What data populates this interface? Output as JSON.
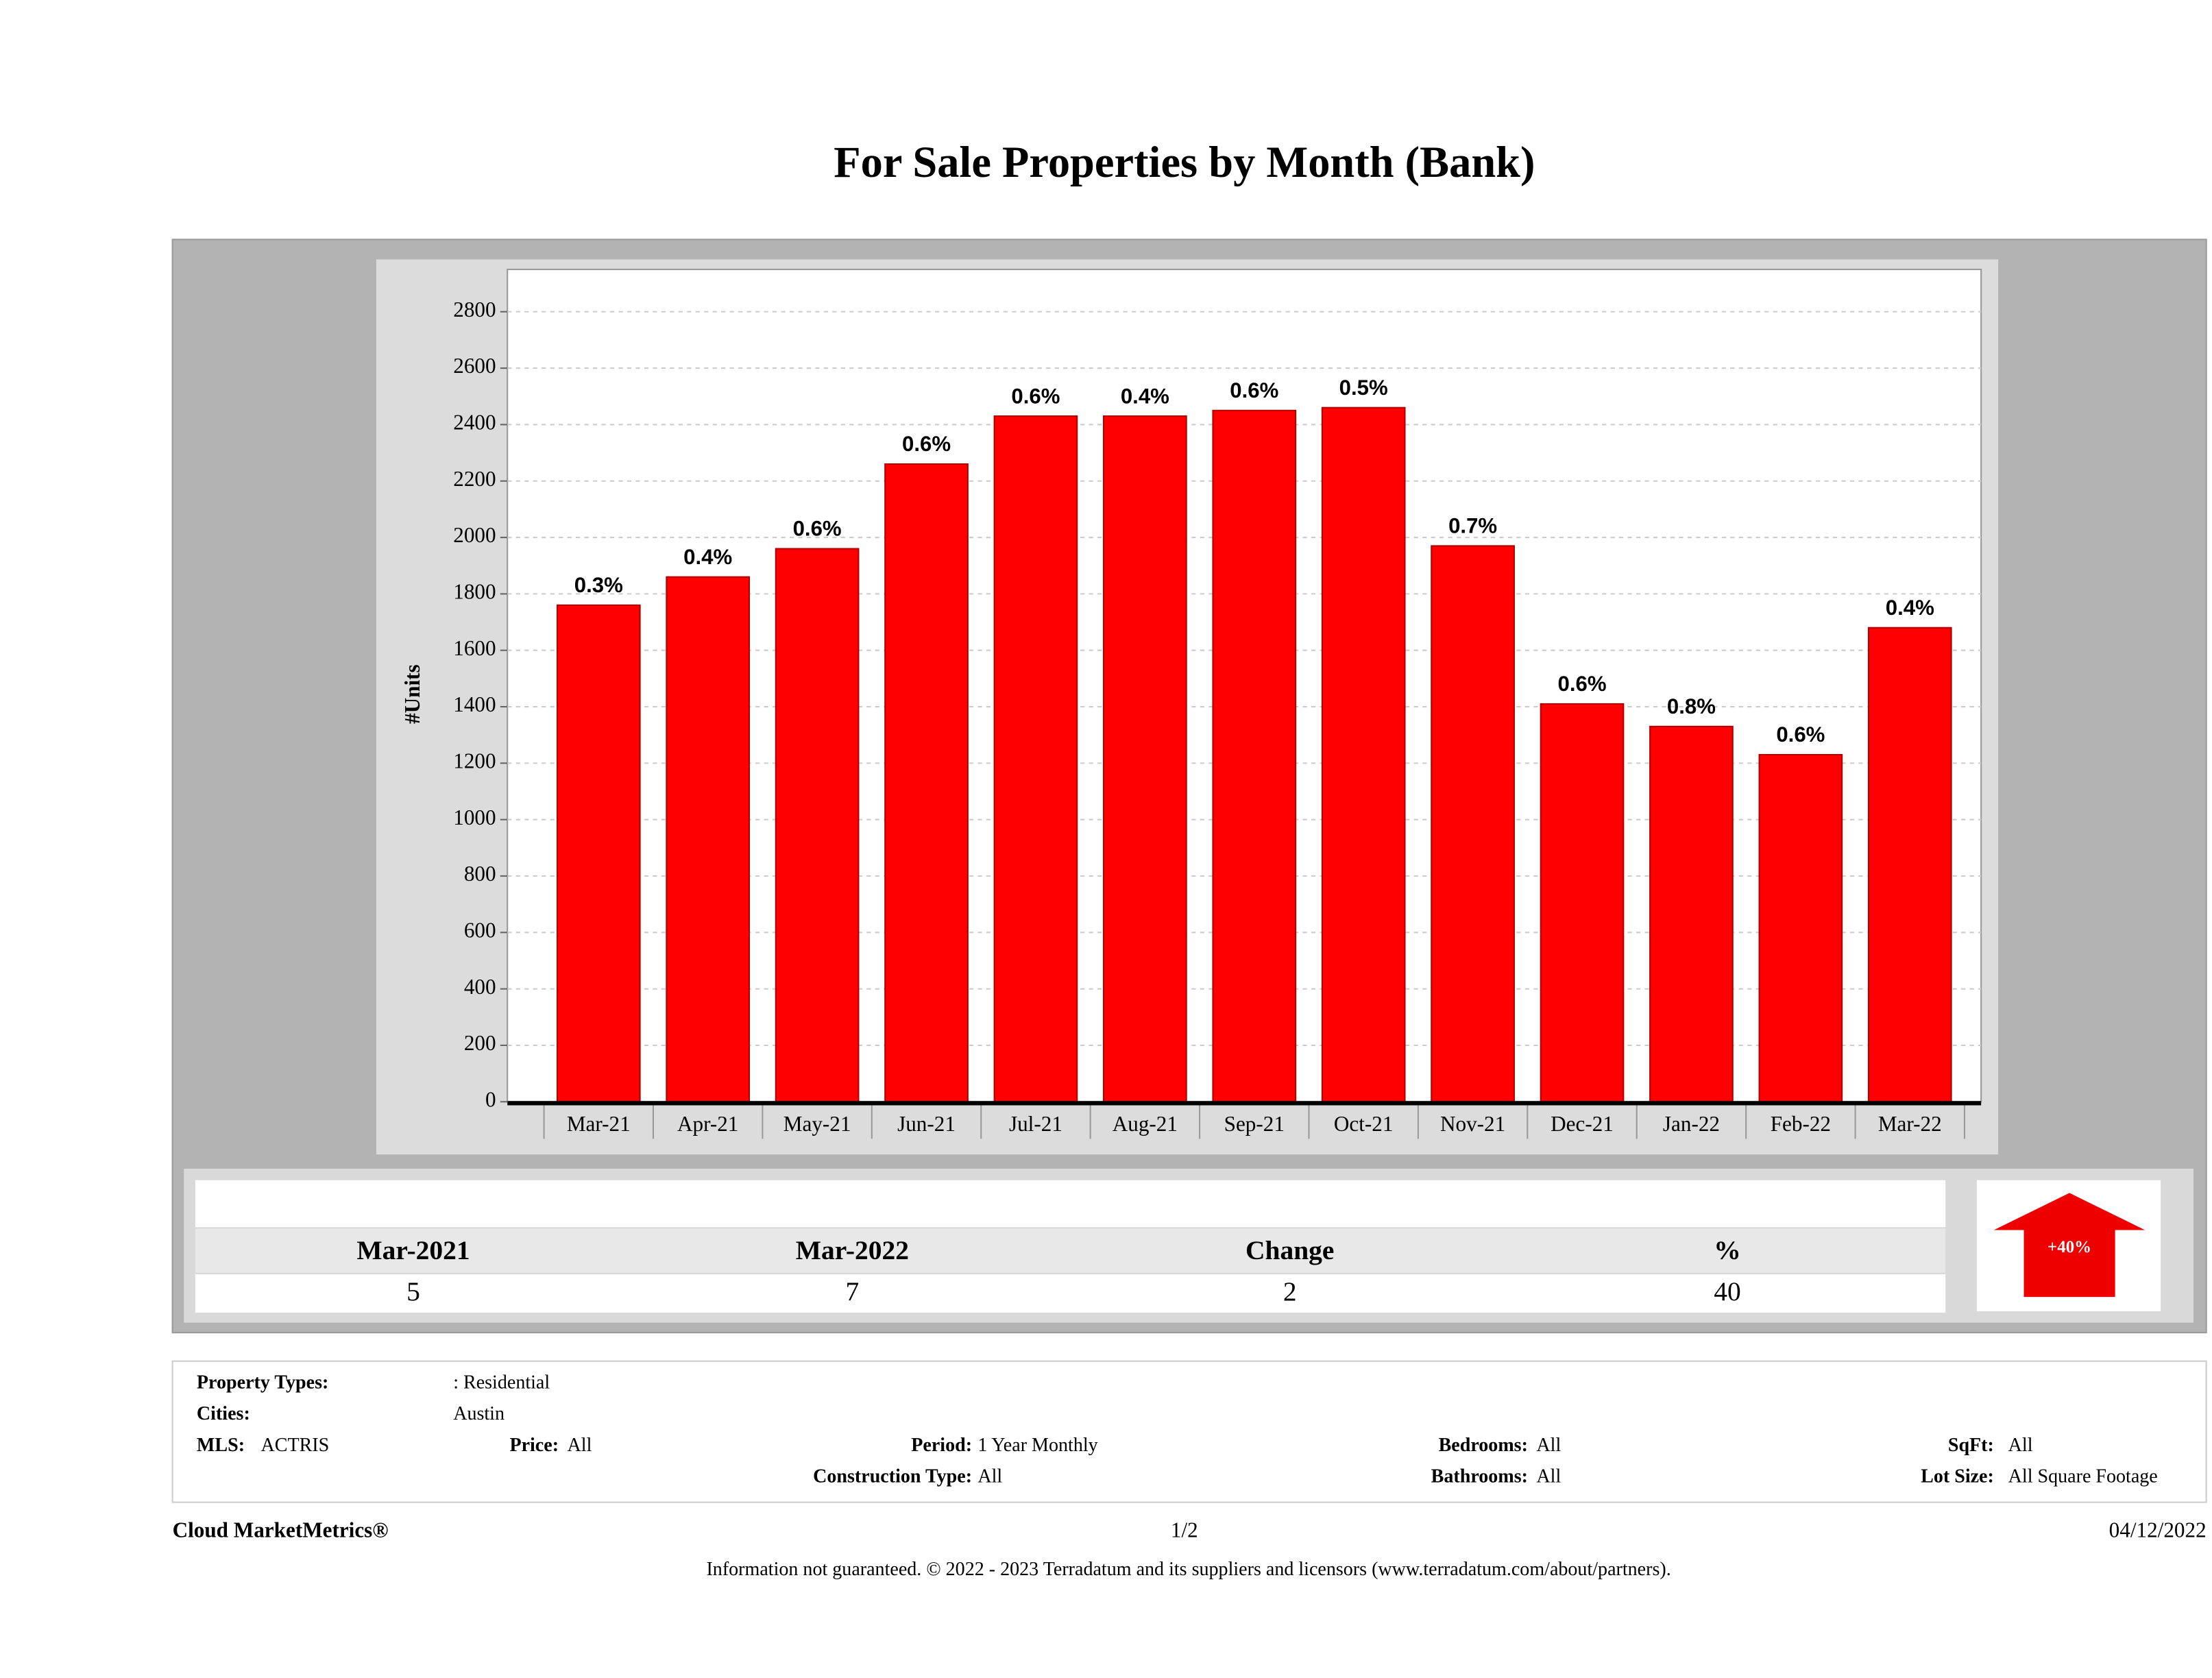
{
  "chart_data": {
    "type": "bar",
    "title": "For Sale Properties by Month (Bank)",
    "ylabel": "#Units",
    "categories": [
      "Mar-21",
      "Apr-21",
      "May-21",
      "Jun-21",
      "Jul-21",
      "Aug-21",
      "Sep-21",
      "Oct-21",
      "Nov-21",
      "Dec-21",
      "Jan-22",
      "Feb-22",
      "Mar-22"
    ],
    "values": [
      1760,
      1860,
      1960,
      2260,
      2430,
      2430,
      2450,
      2460,
      1970,
      1410,
      1330,
      1230,
      1680
    ],
    "bar_labels": [
      "0.3%",
      "0.4%",
      "0.6%",
      "0.6%",
      "0.6%",
      "0.4%",
      "0.6%",
      "0.5%",
      "0.7%",
      "0.6%",
      "0.8%",
      "0.6%",
      "0.4%"
    ],
    "color": "#ff0000",
    "ylim": [
      0,
      2950
    ],
    "yticks": [
      0,
      200,
      400,
      600,
      800,
      1000,
      1200,
      1400,
      1600,
      1800,
      2000,
      2200,
      2400,
      2600,
      2800
    ],
    "grid": true
  },
  "summary": {
    "headers": [
      "Mar-2021",
      "Mar-2022",
      "Change",
      "%"
    ],
    "values": [
      5,
      7,
      2,
      40
    ],
    "arrow_label": "+40%"
  },
  "criteria": [
    {
      "label": "Property Types:",
      "value": ": Residential"
    },
    {
      "label": "Cities:",
      "value": "Austin"
    },
    {
      "label": "MLS:",
      "value": "ACTRIS"
    },
    {
      "label": "Price:",
      "value": "All"
    },
    {
      "label": "Period:",
      "value": "1 Year Monthly"
    },
    {
      "label": "Bedrooms:",
      "value": "All"
    },
    {
      "label": "SqFt:",
      "value": "All"
    },
    {
      "label": "Construction Type:",
      "value": "All"
    },
    {
      "label": "Bathrooms:",
      "value": "All"
    },
    {
      "label": "Lot Size:",
      "value": "All Square Footage"
    }
  ],
  "footer": {
    "brand": "Cloud MarketMetrics®",
    "page": "1/2",
    "date": "04/12/2022",
    "disclaimer": "Information not guaranteed. © 2022 - 2023 Terradatum and its suppliers and licensors (www.terradatum.com/about/partners)."
  }
}
